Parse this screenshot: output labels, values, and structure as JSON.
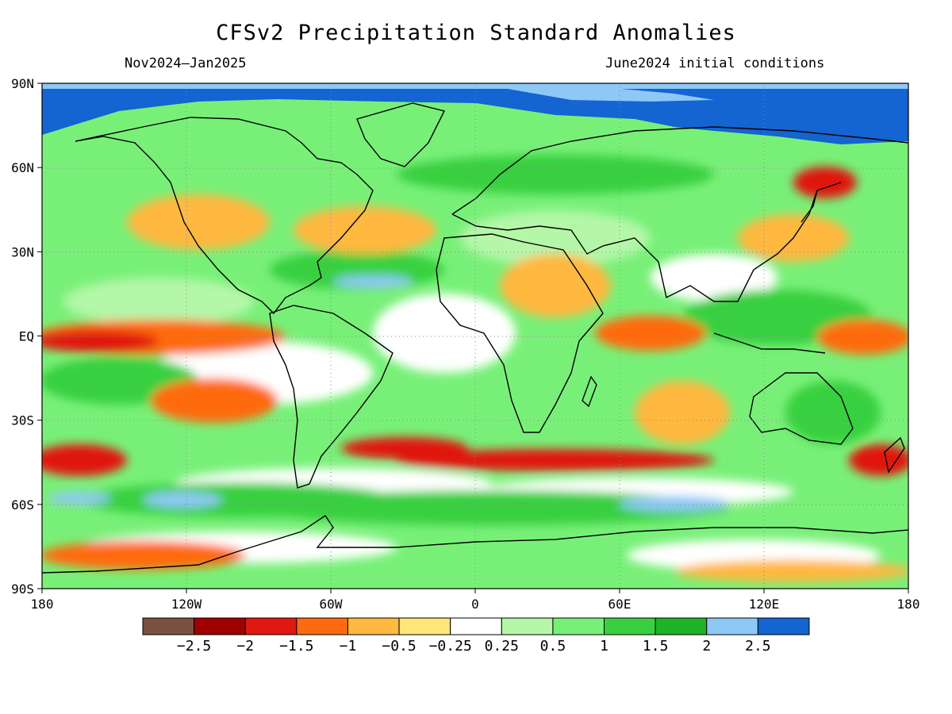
{
  "title": "CFSv2 Precipitation Standard Anomalies",
  "valid_period": "Nov2024–Jan2025",
  "initial_conditions": "June2024 initial conditions",
  "map": {
    "lon_range": [
      -180,
      180
    ],
    "lat_range": [
      -90,
      90
    ],
    "lat_ticks": [
      {
        "lat": 90,
        "label": "90N"
      },
      {
        "lat": 60,
        "label": "60N"
      },
      {
        "lat": 30,
        "label": "30N"
      },
      {
        "lat": 0,
        "label": "EQ"
      },
      {
        "lat": -30,
        "label": "30S"
      },
      {
        "lat": -60,
        "label": "60S"
      },
      {
        "lat": -90,
        "label": "90S"
      }
    ],
    "lon_ticks": [
      {
        "lon": -180,
        "label": "180"
      },
      {
        "lon": -120,
        "label": "120W"
      },
      {
        "lon": -60,
        "label": "60W"
      },
      {
        "lon": 0,
        "label": "0"
      },
      {
        "lon": 60,
        "label": "60E"
      },
      {
        "lon": 120,
        "label": "120E"
      },
      {
        "lon": 180,
        "label": "180"
      }
    ],
    "gridlines": "dotted"
  },
  "colorbar": {
    "colors": [
      "#7a5040",
      "#a00000",
      "#e01810",
      "#ff6a10",
      "#ffb840",
      "#ffe67a",
      "#ffffff",
      "#b4f7a8",
      "#78f078",
      "#38d040",
      "#1eb428",
      "#8ec8f6",
      "#1464d2"
    ],
    "labels": [
      "−2.5",
      "−2",
      "−1.5",
      "−1",
      "−0.5",
      "−0.25",
      "0.25",
      "0.5",
      "1",
      "1.5",
      "2",
      "2.5"
    ]
  }
}
